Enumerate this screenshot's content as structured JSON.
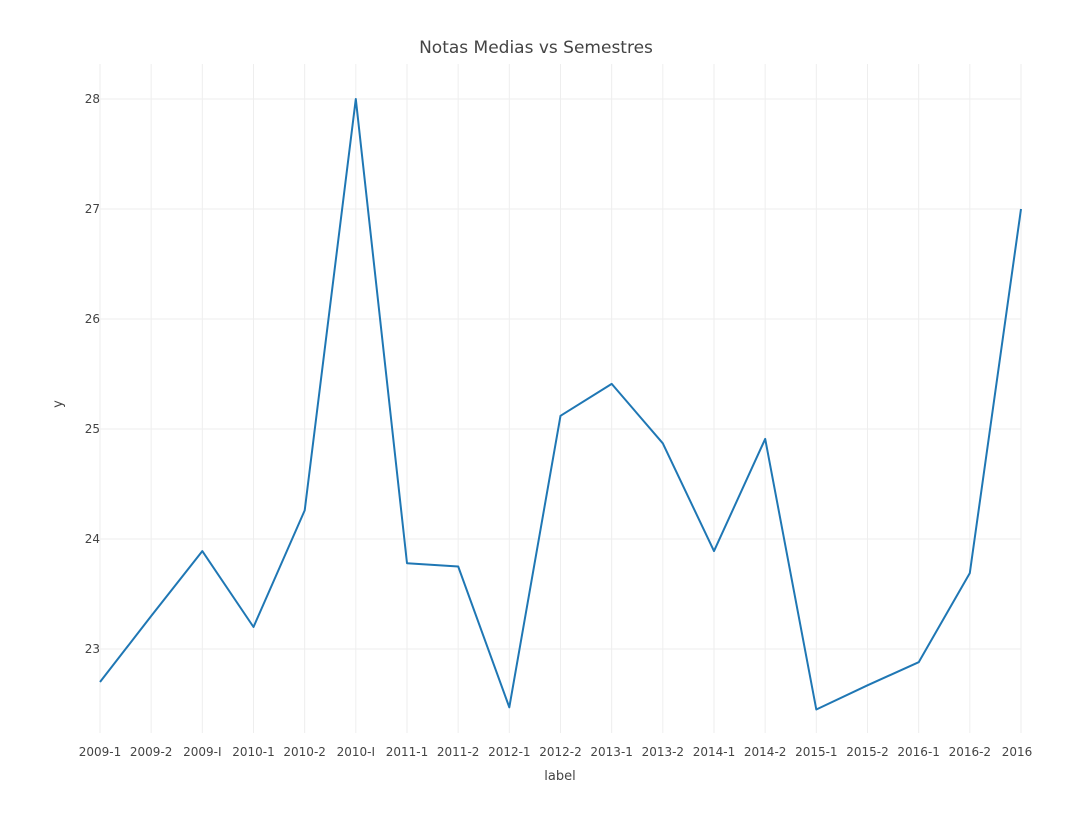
{
  "chart_data": {
    "type": "line",
    "title": "Notas Medias vs Semestres",
    "xlabel": "label",
    "ylabel": "y",
    "categories": [
      "2009-1",
      "2009-2",
      "2009-I",
      "2010-1",
      "2010-2",
      "2010-I",
      "2011-1",
      "2011-2",
      "2012-1",
      "2012-2",
      "2013-1",
      "2013-2",
      "2014-1",
      "2014-2",
      "2015-1",
      "2015-2",
      "2016-1",
      "2016-2",
      "2016"
    ],
    "series": [
      {
        "values": [
          22.7,
          23.3,
          23.89,
          23.2,
          24.26,
          28.0,
          23.78,
          23.75,
          22.47,
          25.12,
          25.41,
          24.87,
          23.89,
          24.91,
          22.45,
          22.67,
          22.88,
          23.69,
          27.0
        ]
      }
    ],
    "yticks": [
      23,
      24,
      25,
      26,
      27,
      28
    ],
    "ylim": [
      22.3,
      28.3
    ],
    "grid": true,
    "color": "#1f77b4"
  }
}
